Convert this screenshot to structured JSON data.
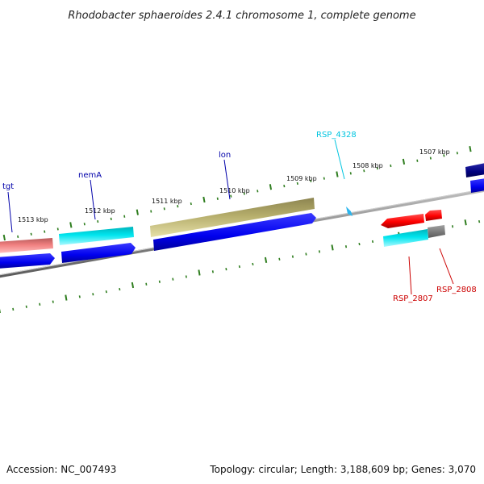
{
  "title": "Rhodobacter sphaeroides 2.4.1 chromosome 1, complete genome",
  "footer": {
    "accession": "Accession: NC_007493",
    "summary": "Topology: circular; Length: 3,188,609 bp; Genes: 3,070"
  },
  "colors": {
    "backbone": "#7a7a7a",
    "tick": "#2e7d1e",
    "forward_cds": "#0000ee",
    "reverse_cds": "#ff0000",
    "olive_gene": "#b5ad6b",
    "cyan_gene": "#00e5ee",
    "pink_gene": "#f08080",
    "navy_gene": "#000080",
    "gray_gene": "#7f7f7f",
    "label_blue": "#0000aa",
    "label_cyan": "#00c5e0",
    "label_red": "#cc0000"
  },
  "kbp_labels": [
    "1513 kbp",
    "1512 kbp",
    "1511 kbp",
    "1510 kbp",
    "1509 kbp",
    "1508 kbp",
    "1507 kbp"
  ],
  "gene_labels": {
    "tgt": "tgt",
    "nemA": "nemA",
    "lon": "lon",
    "rsp_4328": "RSP_4328",
    "rsp_2807": "RSP_2807",
    "rsp_2808": "RSP_2808"
  }
}
